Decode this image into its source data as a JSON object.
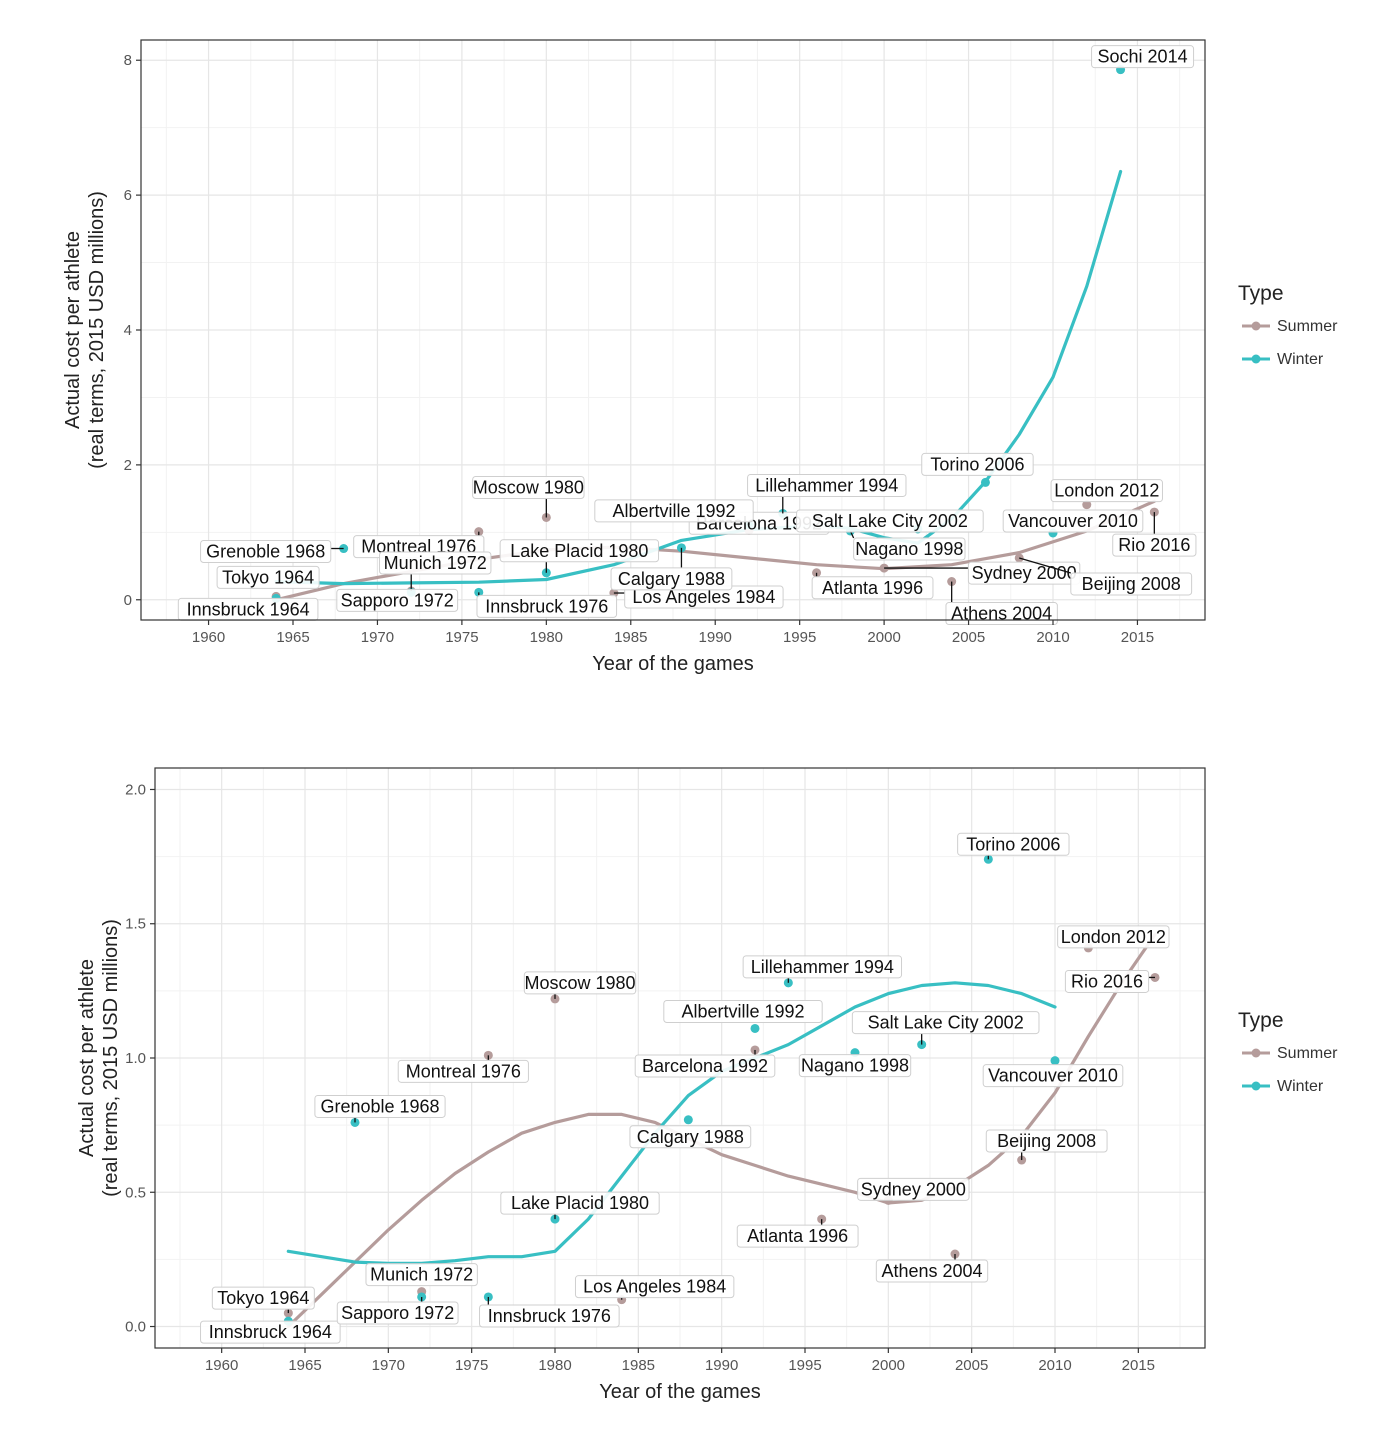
{
  "legend": {
    "title": "Type",
    "items": [
      {
        "label": "Summer",
        "color": "#B59C9B"
      },
      {
        "label": "Winter",
        "color": "#38BFC3"
      }
    ]
  },
  "chart_data": [
    {
      "type": "scatter",
      "xlabel": "Year of the games",
      "ylabel_line1": "Actual cost per athlete",
      "ylabel_line2": "(real terms, 2015 USD millions)",
      "xlim": [
        1956,
        2019
      ],
      "ylim": [
        -0.3,
        8.3
      ],
      "xticks": [
        1960,
        1965,
        1970,
        1975,
        1980,
        1985,
        1990,
        1995,
        2000,
        2005,
        2010,
        2015
      ],
      "yticks": [
        0,
        2,
        4,
        6,
        8
      ],
      "grid": true,
      "legend_position": "right",
      "series": [
        {
          "name": "Summer",
          "color": "#B59C9B",
          "points": [
            {
              "label": "Tokyo 1964",
              "x": 1964,
              "y": 0.05
            },
            {
              "label": "Montreal 1976",
              "x": 1976,
              "y": 1.01
            },
            {
              "label": "Munich 1972",
              "x": 1972,
              "y": 0.13
            },
            {
              "label": "Moscow 1980",
              "x": 1980,
              "y": 1.22
            },
            {
              "label": "Los Angeles 1984",
              "x": 1984,
              "y": 0.1
            },
            {
              "label": "Barcelona 1992",
              "x": 1992,
              "y": 1.03
            },
            {
              "label": "Atlanta 1996",
              "x": 1996,
              "y": 0.4
            },
            {
              "label": "Sydney 2000",
              "x": 2000,
              "y": 0.47
            },
            {
              "label": "Athens 2004",
              "x": 2004,
              "y": 0.27
            },
            {
              "label": "Beijing 2008",
              "x": 2008,
              "y": 0.62
            },
            {
              "label": "London 2012",
              "x": 2012,
              "y": 1.41
            },
            {
              "label": "Rio 2016",
              "x": 2016,
              "y": 1.3
            }
          ],
          "trend": [
            [
              1964,
              0.0
            ],
            [
              1966,
              0.12
            ],
            [
              1968,
              0.24
            ],
            [
              1972,
              0.42
            ],
            [
              1976,
              0.6
            ],
            [
              1980,
              0.74
            ],
            [
              1984,
              0.78
            ],
            [
              1988,
              0.72
            ],
            [
              1992,
              0.62
            ],
            [
              1996,
              0.52
            ],
            [
              2000,
              0.46
            ],
            [
              2004,
              0.52
            ],
            [
              2008,
              0.7
            ],
            [
              2012,
              1.02
            ],
            [
              2016,
              1.46
            ]
          ]
        },
        {
          "name": "Winter",
          "color": "#38BFC3",
          "points": [
            {
              "label": "Innsbruck 1964",
              "x": 1964,
              "y": 0.02
            },
            {
              "label": "Grenoble 1968",
              "x": 1968,
              "y": 0.76
            },
            {
              "label": "Sapporo 1972",
              "x": 1972,
              "y": 0.11
            },
            {
              "label": "Innsbruck 1976",
              "x": 1976,
              "y": 0.11
            },
            {
              "label": "Lake Placid 1980",
              "x": 1980,
              "y": 0.4
            },
            {
              "label": "Calgary 1988",
              "x": 1988,
              "y": 0.77
            },
            {
              "label": "Albertville 1992",
              "x": 1992,
              "y": 1.11
            },
            {
              "label": "Lillehammer 1994",
              "x": 1994,
              "y": 1.28
            },
            {
              "label": "Nagano 1998",
              "x": 1998,
              "y": 1.02
            },
            {
              "label": "Salt Lake City 2002",
              "x": 2002,
              "y": 1.05
            },
            {
              "label": "Torino 2006",
              "x": 2006,
              "y": 1.74
            },
            {
              "label": "Vancouver 2010",
              "x": 2010,
              "y": 0.99
            },
            {
              "label": "Sochi 2014",
              "x": 2014,
              "y": 7.86
            }
          ],
          "trend": [
            [
              1964,
              0.27
            ],
            [
              1968,
              0.24
            ],
            [
              1972,
              0.25
            ],
            [
              1976,
              0.26
            ],
            [
              1980,
              0.3
            ],
            [
              1984,
              0.52
            ],
            [
              1988,
              0.88
            ],
            [
              1992,
              1.04
            ],
            [
              1996,
              1.1
            ],
            [
              1998,
              1.06
            ],
            [
              2000,
              0.92
            ],
            [
              2002,
              0.84
            ],
            [
              2004,
              1.2
            ],
            [
              2006,
              1.75
            ],
            [
              2008,
              2.45
            ],
            [
              2010,
              3.3
            ],
            [
              2012,
              4.65
            ],
            [
              2014,
              6.35
            ]
          ]
        }
      ]
    },
    {
      "type": "scatter",
      "xlabel": "Year of the games",
      "ylabel_line1": "Actual cost per athlete",
      "ylabel_line2": "(real terms, 2015 USD millions)",
      "xlim": [
        1956,
        2019
      ],
      "ylim": [
        -0.08,
        2.08
      ],
      "xticks": [
        1960,
        1965,
        1970,
        1975,
        1980,
        1985,
        1990,
        1995,
        2000,
        2005,
        2010,
        2015
      ],
      "yticks": [
        "0.0",
        "0.5",
        "1.0",
        "1.5",
        "2.0"
      ],
      "grid": true,
      "legend_position": "right",
      "series": [
        {
          "name": "Summer",
          "color": "#B59C9B",
          "points": [
            {
              "label": "Tokyo 1964",
              "x": 1964,
              "y": 0.05
            },
            {
              "label": "Munich 1972",
              "x": 1972,
              "y": 0.13
            },
            {
              "label": "Montreal 1976",
              "x": 1976,
              "y": 1.01
            },
            {
              "label": "Moscow 1980",
              "x": 1980,
              "y": 1.22
            },
            {
              "label": "Los Angeles 1984",
              "x": 1984,
              "y": 0.1
            },
            {
              "label": "Barcelona 1992",
              "x": 1992,
              "y": 1.03
            },
            {
              "label": "Atlanta 1996",
              "x": 1996,
              "y": 0.4
            },
            {
              "label": "Sydney 2000",
              "x": 2000,
              "y": 0.47
            },
            {
              "label": "Athens 2004",
              "x": 2004,
              "y": 0.27
            },
            {
              "label": "Beijing 2008",
              "x": 2008,
              "y": 0.62
            },
            {
              "label": "London 2012",
              "x": 2012,
              "y": 1.41
            },
            {
              "label": "Rio 2016",
              "x": 2016,
              "y": 1.3
            }
          ],
          "trend": [
            [
              1964,
              0.0
            ],
            [
              1966,
              0.12
            ],
            [
              1968,
              0.24
            ],
            [
              1970,
              0.36
            ],
            [
              1972,
              0.47
            ],
            [
              1974,
              0.57
            ],
            [
              1976,
              0.65
            ],
            [
              1978,
              0.72
            ],
            [
              1980,
              0.76
            ],
            [
              1982,
              0.79
            ],
            [
              1984,
              0.79
            ],
            [
              1986,
              0.76
            ],
            [
              1988,
              0.7
            ],
            [
              1990,
              0.64
            ],
            [
              1992,
              0.6
            ],
            [
              1994,
              0.56
            ],
            [
              1996,
              0.53
            ],
            [
              1998,
              0.5
            ],
            [
              2000,
              0.46
            ],
            [
              2002,
              0.47
            ],
            [
              2004,
              0.52
            ],
            [
              2006,
              0.6
            ],
            [
              2008,
              0.71
            ],
            [
              2010,
              0.87
            ],
            [
              2012,
              1.08
            ],
            [
              2014,
              1.28
            ],
            [
              2016,
              1.46
            ]
          ]
        },
        {
          "name": "Winter",
          "color": "#38BFC3",
          "points": [
            {
              "label": "Innsbruck 1964",
              "x": 1964,
              "y": 0.02
            },
            {
              "label": "Grenoble 1968",
              "x": 1968,
              "y": 0.76
            },
            {
              "label": "Sapporo 1972",
              "x": 1972,
              "y": 0.11
            },
            {
              "label": "Innsbruck 1976",
              "x": 1976,
              "y": 0.11
            },
            {
              "label": "Lake Placid 1980",
              "x": 1980,
              "y": 0.4
            },
            {
              "label": "Calgary 1988",
              "x": 1988,
              "y": 0.77
            },
            {
              "label": "Albertville 1992",
              "x": 1992,
              "y": 1.11
            },
            {
              "label": "Lillehammer 1994",
              "x": 1994,
              "y": 1.28
            },
            {
              "label": "Nagano 1998",
              "x": 1998,
              "y": 1.02
            },
            {
              "label": "Salt Lake City 2002",
              "x": 2002,
              "y": 1.05
            },
            {
              "label": "Torino 2006",
              "x": 2006,
              "y": 1.74
            },
            {
              "label": "Vancouver 2010",
              "x": 2010,
              "y": 0.99
            }
          ],
          "trend": [
            [
              1964,
              0.28
            ],
            [
              1966,
              0.26
            ],
            [
              1968,
              0.24
            ],
            [
              1970,
              0.235
            ],
            [
              1972,
              0.235
            ],
            [
              1974,
              0.245
            ],
            [
              1976,
              0.26
            ],
            [
              1978,
              0.26
            ],
            [
              1980,
              0.28
            ],
            [
              1982,
              0.4
            ],
            [
              1984,
              0.56
            ],
            [
              1986,
              0.72
            ],
            [
              1988,
              0.86
            ],
            [
              1990,
              0.95
            ],
            [
              1992,
              1.0
            ],
            [
              1994,
              1.05
            ],
            [
              1996,
              1.12
            ],
            [
              1998,
              1.19
            ],
            [
              2000,
              1.24
            ],
            [
              2002,
              1.27
            ],
            [
              2004,
              1.28
            ],
            [
              2006,
              1.27
            ],
            [
              2008,
              1.24
            ],
            [
              2010,
              1.19
            ]
          ]
        }
      ]
    }
  ]
}
